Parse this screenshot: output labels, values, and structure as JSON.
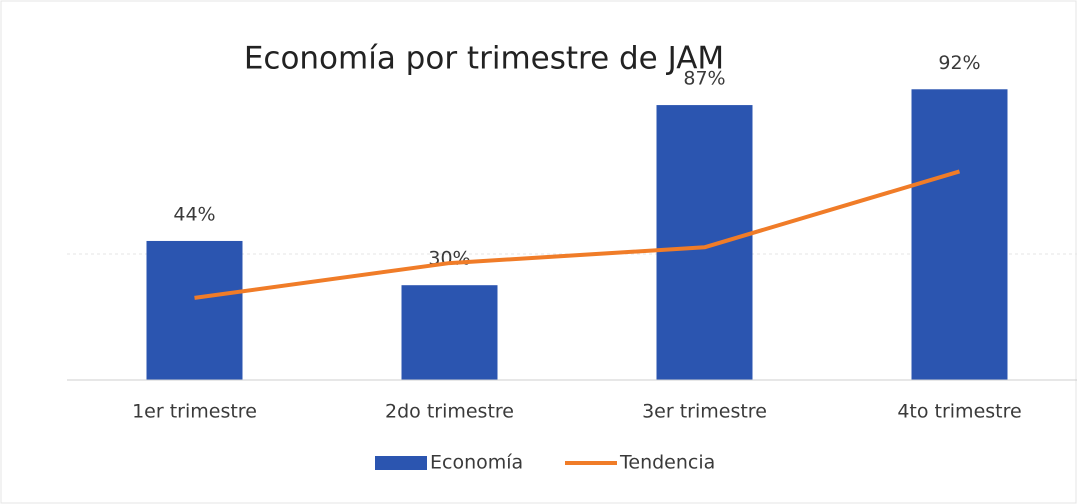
{
  "chart_data": {
    "type": "bar",
    "title": "Economía por trimestre de JAM",
    "categories": [
      "1er trimestre",
      "2do trimestre",
      "3er trimestre",
      "4to trimestre"
    ],
    "series": [
      {
        "name": "Economía",
        "type": "bar",
        "color": "#2b55b0",
        "values": [
          44,
          30,
          87,
          92
        ],
        "value_labels": [
          "44%",
          "30%",
          "87%",
          "92%"
        ]
      },
      {
        "name": "Tendencia",
        "type": "line",
        "color": "#f07c28",
        "values": [
          26,
          37,
          42,
          66
        ]
      }
    ],
    "ylim": [
      0,
      100
    ],
    "legend": "bottom"
  }
}
